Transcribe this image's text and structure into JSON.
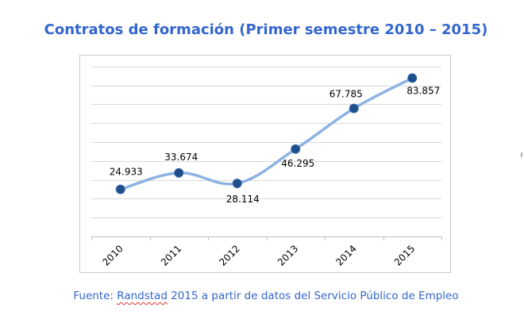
{
  "chart_data": {
    "type": "line",
    "title": "Contratos de formación (Primer semestre 2010 – 2015)",
    "xlabel": "",
    "ylabel": "",
    "categories": [
      "2010",
      "2011",
      "2012",
      "2013",
      "2014",
      "2015"
    ],
    "series": [
      {
        "values": [
          24933,
          33674,
          28114,
          46295,
          67785,
          83857
        ],
        "labels": [
          "24.933",
          "33.674",
          "28.114",
          "46.295",
          "67.785",
          "83.857"
        ]
      }
    ],
    "ylim": [
      0,
      100000
    ],
    "grid": true,
    "legend": "none",
    "smooth": true,
    "line_color": "#8db3e2",
    "marker_color": "#1f4e8c"
  },
  "source": {
    "prefix": "Fuente: ",
    "brand": "Randstad",
    "suffix": " 2015 a partir de datos del Servicio Público de Empleo"
  },
  "colors": {
    "title": "#3366cc",
    "source": "#3366cc",
    "gridline": "#d9d9d9",
    "axis": "#bfbfbf"
  }
}
